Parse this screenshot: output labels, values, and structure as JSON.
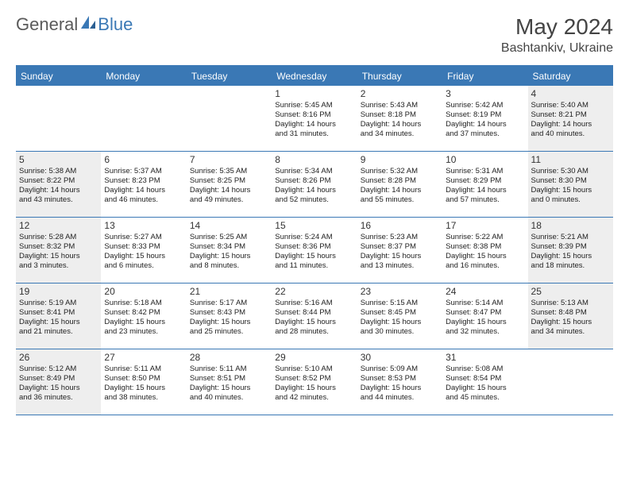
{
  "brand": {
    "part1": "General",
    "part2": "Blue"
  },
  "title": "May 2024",
  "location": "Bashtankiv, Ukraine",
  "colors": {
    "accent": "#3a78b5",
    "shade": "#eeeeee",
    "background": "#ffffff",
    "text": "#333333"
  },
  "daynames": [
    "Sunday",
    "Monday",
    "Tuesday",
    "Wednesday",
    "Thursday",
    "Friday",
    "Saturday"
  ],
  "weeks": [
    [
      {
        "num": "",
        "shaded": false,
        "lines": []
      },
      {
        "num": "",
        "shaded": false,
        "lines": []
      },
      {
        "num": "",
        "shaded": false,
        "lines": []
      },
      {
        "num": "1",
        "shaded": false,
        "lines": [
          "Sunrise: 5:45 AM",
          "Sunset: 8:16 PM",
          "Daylight: 14 hours",
          "and 31 minutes."
        ]
      },
      {
        "num": "2",
        "shaded": false,
        "lines": [
          "Sunrise: 5:43 AM",
          "Sunset: 8:18 PM",
          "Daylight: 14 hours",
          "and 34 minutes."
        ]
      },
      {
        "num": "3",
        "shaded": false,
        "lines": [
          "Sunrise: 5:42 AM",
          "Sunset: 8:19 PM",
          "Daylight: 14 hours",
          "and 37 minutes."
        ]
      },
      {
        "num": "4",
        "shaded": true,
        "lines": [
          "Sunrise: 5:40 AM",
          "Sunset: 8:21 PM",
          "Daylight: 14 hours",
          "and 40 minutes."
        ]
      }
    ],
    [
      {
        "num": "5",
        "shaded": true,
        "lines": [
          "Sunrise: 5:38 AM",
          "Sunset: 8:22 PM",
          "Daylight: 14 hours",
          "and 43 minutes."
        ]
      },
      {
        "num": "6",
        "shaded": false,
        "lines": [
          "Sunrise: 5:37 AM",
          "Sunset: 8:23 PM",
          "Daylight: 14 hours",
          "and 46 minutes."
        ]
      },
      {
        "num": "7",
        "shaded": false,
        "lines": [
          "Sunrise: 5:35 AM",
          "Sunset: 8:25 PM",
          "Daylight: 14 hours",
          "and 49 minutes."
        ]
      },
      {
        "num": "8",
        "shaded": false,
        "lines": [
          "Sunrise: 5:34 AM",
          "Sunset: 8:26 PM",
          "Daylight: 14 hours",
          "and 52 minutes."
        ]
      },
      {
        "num": "9",
        "shaded": false,
        "lines": [
          "Sunrise: 5:32 AM",
          "Sunset: 8:28 PM",
          "Daylight: 14 hours",
          "and 55 minutes."
        ]
      },
      {
        "num": "10",
        "shaded": false,
        "lines": [
          "Sunrise: 5:31 AM",
          "Sunset: 8:29 PM",
          "Daylight: 14 hours",
          "and 57 minutes."
        ]
      },
      {
        "num": "11",
        "shaded": true,
        "lines": [
          "Sunrise: 5:30 AM",
          "Sunset: 8:30 PM",
          "Daylight: 15 hours",
          "and 0 minutes."
        ]
      }
    ],
    [
      {
        "num": "12",
        "shaded": true,
        "lines": [
          "Sunrise: 5:28 AM",
          "Sunset: 8:32 PM",
          "Daylight: 15 hours",
          "and 3 minutes."
        ]
      },
      {
        "num": "13",
        "shaded": false,
        "lines": [
          "Sunrise: 5:27 AM",
          "Sunset: 8:33 PM",
          "Daylight: 15 hours",
          "and 6 minutes."
        ]
      },
      {
        "num": "14",
        "shaded": false,
        "lines": [
          "Sunrise: 5:25 AM",
          "Sunset: 8:34 PM",
          "Daylight: 15 hours",
          "and 8 minutes."
        ]
      },
      {
        "num": "15",
        "shaded": false,
        "lines": [
          "Sunrise: 5:24 AM",
          "Sunset: 8:36 PM",
          "Daylight: 15 hours",
          "and 11 minutes."
        ]
      },
      {
        "num": "16",
        "shaded": false,
        "lines": [
          "Sunrise: 5:23 AM",
          "Sunset: 8:37 PM",
          "Daylight: 15 hours",
          "and 13 minutes."
        ]
      },
      {
        "num": "17",
        "shaded": false,
        "lines": [
          "Sunrise: 5:22 AM",
          "Sunset: 8:38 PM",
          "Daylight: 15 hours",
          "and 16 minutes."
        ]
      },
      {
        "num": "18",
        "shaded": true,
        "lines": [
          "Sunrise: 5:21 AM",
          "Sunset: 8:39 PM",
          "Daylight: 15 hours",
          "and 18 minutes."
        ]
      }
    ],
    [
      {
        "num": "19",
        "shaded": true,
        "lines": [
          "Sunrise: 5:19 AM",
          "Sunset: 8:41 PM",
          "Daylight: 15 hours",
          "and 21 minutes."
        ]
      },
      {
        "num": "20",
        "shaded": false,
        "lines": [
          "Sunrise: 5:18 AM",
          "Sunset: 8:42 PM",
          "Daylight: 15 hours",
          "and 23 minutes."
        ]
      },
      {
        "num": "21",
        "shaded": false,
        "lines": [
          "Sunrise: 5:17 AM",
          "Sunset: 8:43 PM",
          "Daylight: 15 hours",
          "and 25 minutes."
        ]
      },
      {
        "num": "22",
        "shaded": false,
        "lines": [
          "Sunrise: 5:16 AM",
          "Sunset: 8:44 PM",
          "Daylight: 15 hours",
          "and 28 minutes."
        ]
      },
      {
        "num": "23",
        "shaded": false,
        "lines": [
          "Sunrise: 5:15 AM",
          "Sunset: 8:45 PM",
          "Daylight: 15 hours",
          "and 30 minutes."
        ]
      },
      {
        "num": "24",
        "shaded": false,
        "lines": [
          "Sunrise: 5:14 AM",
          "Sunset: 8:47 PM",
          "Daylight: 15 hours",
          "and 32 minutes."
        ]
      },
      {
        "num": "25",
        "shaded": true,
        "lines": [
          "Sunrise: 5:13 AM",
          "Sunset: 8:48 PM",
          "Daylight: 15 hours",
          "and 34 minutes."
        ]
      }
    ],
    [
      {
        "num": "26",
        "shaded": true,
        "lines": [
          "Sunrise: 5:12 AM",
          "Sunset: 8:49 PM",
          "Daylight: 15 hours",
          "and 36 minutes."
        ]
      },
      {
        "num": "27",
        "shaded": false,
        "lines": [
          "Sunrise: 5:11 AM",
          "Sunset: 8:50 PM",
          "Daylight: 15 hours",
          "and 38 minutes."
        ]
      },
      {
        "num": "28",
        "shaded": false,
        "lines": [
          "Sunrise: 5:11 AM",
          "Sunset: 8:51 PM",
          "Daylight: 15 hours",
          "and 40 minutes."
        ]
      },
      {
        "num": "29",
        "shaded": false,
        "lines": [
          "Sunrise: 5:10 AM",
          "Sunset: 8:52 PM",
          "Daylight: 15 hours",
          "and 42 minutes."
        ]
      },
      {
        "num": "30",
        "shaded": false,
        "lines": [
          "Sunrise: 5:09 AM",
          "Sunset: 8:53 PM",
          "Daylight: 15 hours",
          "and 44 minutes."
        ]
      },
      {
        "num": "31",
        "shaded": false,
        "lines": [
          "Sunrise: 5:08 AM",
          "Sunset: 8:54 PM",
          "Daylight: 15 hours",
          "and 45 minutes."
        ]
      },
      {
        "num": "",
        "shaded": false,
        "lines": []
      }
    ]
  ]
}
